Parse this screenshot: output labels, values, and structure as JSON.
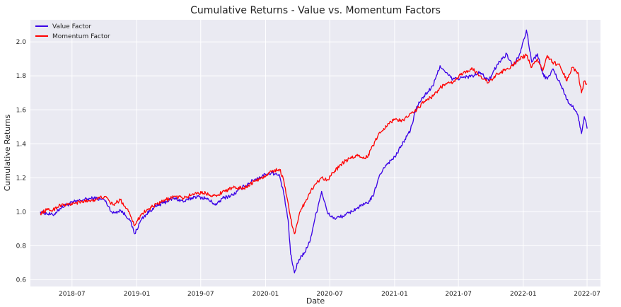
{
  "chart_data": {
    "type": "line",
    "title": "Cumulative Returns - Value vs. Momentum Factors",
    "xlabel": "Date",
    "ylabel": "Cumulative Returns",
    "xlim": [
      "2018-03-05",
      "2022-08-08"
    ],
    "ylim": [
      0.56,
      2.13
    ],
    "grid": true,
    "legend_position": "top-left",
    "x_ticks": [
      "2018-07",
      "2019-01",
      "2019-07",
      "2020-01",
      "2020-07",
      "2021-01",
      "2021-07",
      "2022-01",
      "2022-07"
    ],
    "y_ticks": [
      0.6,
      0.8,
      1.0,
      1.2,
      1.4,
      1.6,
      1.8,
      2.0
    ],
    "series": [
      {
        "name": "Value Factor",
        "color": "#3a00e6",
        "points": [
          [
            "2018-04-02",
            1.0
          ],
          [
            "2018-04-20",
            0.99
          ],
          [
            "2018-05-08",
            0.98
          ],
          [
            "2018-05-28",
            1.02
          ],
          [
            "2018-06-15",
            1.04
          ],
          [
            "2018-07-10",
            1.06
          ],
          [
            "2018-08-01",
            1.07
          ],
          [
            "2018-09-01",
            1.08
          ],
          [
            "2018-10-01",
            1.07
          ],
          [
            "2018-10-25",
            0.99
          ],
          [
            "2018-11-15",
            1.01
          ],
          [
            "2018-12-10",
            0.96
          ],
          [
            "2018-12-26",
            0.87
          ],
          [
            "2019-01-15",
            0.96
          ],
          [
            "2019-02-15",
            1.02
          ],
          [
            "2019-03-15",
            1.05
          ],
          [
            "2019-04-15",
            1.08
          ],
          [
            "2019-05-15",
            1.06
          ],
          [
            "2019-06-15",
            1.09
          ],
          [
            "2019-07-15",
            1.08
          ],
          [
            "2019-08-15",
            1.04
          ],
          [
            "2019-09-01",
            1.08
          ],
          [
            "2019-10-01",
            1.1
          ],
          [
            "2019-11-01",
            1.15
          ],
          [
            "2019-12-01",
            1.19
          ],
          [
            "2020-01-01",
            1.22
          ],
          [
            "2020-01-20",
            1.23
          ],
          [
            "2020-02-10",
            1.21
          ],
          [
            "2020-02-22",
            1.1
          ],
          [
            "2020-03-05",
            0.95
          ],
          [
            "2020-03-12",
            0.75
          ],
          [
            "2020-03-23",
            0.64
          ],
          [
            "2020-04-05",
            0.72
          ],
          [
            "2020-04-20",
            0.76
          ],
          [
            "2020-05-05",
            0.82
          ],
          [
            "2020-05-20",
            0.96
          ],
          [
            "2020-06-08",
            1.12
          ],
          [
            "2020-06-25",
            0.99
          ],
          [
            "2020-07-15",
            0.96
          ],
          [
            "2020-08-15",
            0.98
          ],
          [
            "2020-09-15",
            1.02
          ],
          [
            "2020-10-15",
            1.05
          ],
          [
            "2020-11-01",
            1.09
          ],
          [
            "2020-11-15",
            1.19
          ],
          [
            "2020-12-01",
            1.26
          ],
          [
            "2020-12-15",
            1.29
          ],
          [
            "2021-01-05",
            1.33
          ],
          [
            "2021-01-20",
            1.39
          ],
          [
            "2021-02-15",
            1.48
          ],
          [
            "2021-03-05",
            1.62
          ],
          [
            "2021-03-25",
            1.68
          ],
          [
            "2021-04-20",
            1.74
          ],
          [
            "2021-05-10",
            1.86
          ],
          [
            "2021-05-25",
            1.82
          ],
          [
            "2021-06-15",
            1.78
          ],
          [
            "2021-07-15",
            1.79
          ],
          [
            "2021-08-10",
            1.8
          ],
          [
            "2021-09-01",
            1.82
          ],
          [
            "2021-09-25",
            1.77
          ],
          [
            "2021-10-20",
            1.87
          ],
          [
            "2021-11-15",
            1.93
          ],
          [
            "2021-12-01",
            1.86
          ],
          [
            "2021-12-20",
            1.92
          ],
          [
            "2022-01-10",
            2.07
          ],
          [
            "2022-01-25",
            1.88
          ],
          [
            "2022-02-10",
            1.93
          ],
          [
            "2022-02-25",
            1.81
          ],
          [
            "2022-03-10",
            1.78
          ],
          [
            "2022-03-25",
            1.84
          ],
          [
            "2022-04-15",
            1.76
          ],
          [
            "2022-05-05",
            1.66
          ],
          [
            "2022-05-20",
            1.62
          ],
          [
            "2022-06-05",
            1.57
          ],
          [
            "2022-06-15",
            1.46
          ],
          [
            "2022-06-23",
            1.56
          ],
          [
            "2022-07-01",
            1.49
          ]
        ]
      },
      {
        "name": "Momentum Factor",
        "color": "#ff0000",
        "points": [
          [
            "2018-04-02",
            0.99
          ],
          [
            "2018-04-20",
            1.01
          ],
          [
            "2018-05-08",
            1.01
          ],
          [
            "2018-05-28",
            1.04
          ],
          [
            "2018-06-15",
            1.04
          ],
          [
            "2018-07-10",
            1.05
          ],
          [
            "2018-08-01",
            1.06
          ],
          [
            "2018-09-01",
            1.07
          ],
          [
            "2018-10-01",
            1.09
          ],
          [
            "2018-10-25",
            1.04
          ],
          [
            "2018-11-15",
            1.07
          ],
          [
            "2018-12-10",
            1.0
          ],
          [
            "2018-12-26",
            0.92
          ],
          [
            "2019-01-15",
            0.99
          ],
          [
            "2019-02-15",
            1.03
          ],
          [
            "2019-03-15",
            1.06
          ],
          [
            "2019-04-15",
            1.09
          ],
          [
            "2019-05-15",
            1.08
          ],
          [
            "2019-06-15",
            1.11
          ],
          [
            "2019-07-15",
            1.11
          ],
          [
            "2019-08-15",
            1.09
          ],
          [
            "2019-09-01",
            1.12
          ],
          [
            "2019-10-01",
            1.14
          ],
          [
            "2019-11-01",
            1.14
          ],
          [
            "2019-12-01",
            1.18
          ],
          [
            "2020-01-01",
            1.21
          ],
          [
            "2020-01-20",
            1.24
          ],
          [
            "2020-02-10",
            1.25
          ],
          [
            "2020-02-22",
            1.18
          ],
          [
            "2020-03-05",
            1.05
          ],
          [
            "2020-03-12",
            0.96
          ],
          [
            "2020-03-23",
            0.87
          ],
          [
            "2020-04-05",
            0.98
          ],
          [
            "2020-04-20",
            1.05
          ],
          [
            "2020-05-05",
            1.11
          ],
          [
            "2020-05-20",
            1.16
          ],
          [
            "2020-06-08",
            1.2
          ],
          [
            "2020-06-25",
            1.19
          ],
          [
            "2020-07-15",
            1.24
          ],
          [
            "2020-08-15",
            1.3
          ],
          [
            "2020-09-15",
            1.33
          ],
          [
            "2020-10-15",
            1.32
          ],
          [
            "2020-11-01",
            1.39
          ],
          [
            "2020-11-15",
            1.45
          ],
          [
            "2020-12-01",
            1.49
          ],
          [
            "2020-12-15",
            1.52
          ],
          [
            "2021-01-05",
            1.55
          ],
          [
            "2021-01-20",
            1.53
          ],
          [
            "2021-02-15",
            1.58
          ],
          [
            "2021-03-05",
            1.6
          ],
          [
            "2021-03-25",
            1.65
          ],
          [
            "2021-04-20",
            1.68
          ],
          [
            "2021-05-10",
            1.73
          ],
          [
            "2021-05-25",
            1.75
          ],
          [
            "2021-06-15",
            1.76
          ],
          [
            "2021-07-15",
            1.82
          ],
          [
            "2021-08-10",
            1.84
          ],
          [
            "2021-09-01",
            1.8
          ],
          [
            "2021-09-25",
            1.76
          ],
          [
            "2021-10-20",
            1.81
          ],
          [
            "2021-11-15",
            1.84
          ],
          [
            "2021-12-01",
            1.86
          ],
          [
            "2021-12-20",
            1.9
          ],
          [
            "2022-01-10",
            1.92
          ],
          [
            "2022-01-25",
            1.85
          ],
          [
            "2022-02-10",
            1.9
          ],
          [
            "2022-02-25",
            1.83
          ],
          [
            "2022-03-10",
            1.92
          ],
          [
            "2022-03-25",
            1.88
          ],
          [
            "2022-04-15",
            1.86
          ],
          [
            "2022-05-05",
            1.77
          ],
          [
            "2022-05-20",
            1.85
          ],
          [
            "2022-06-05",
            1.82
          ],
          [
            "2022-06-15",
            1.7
          ],
          [
            "2022-06-23",
            1.77
          ],
          [
            "2022-07-01",
            1.75
          ]
        ]
      }
    ]
  }
}
